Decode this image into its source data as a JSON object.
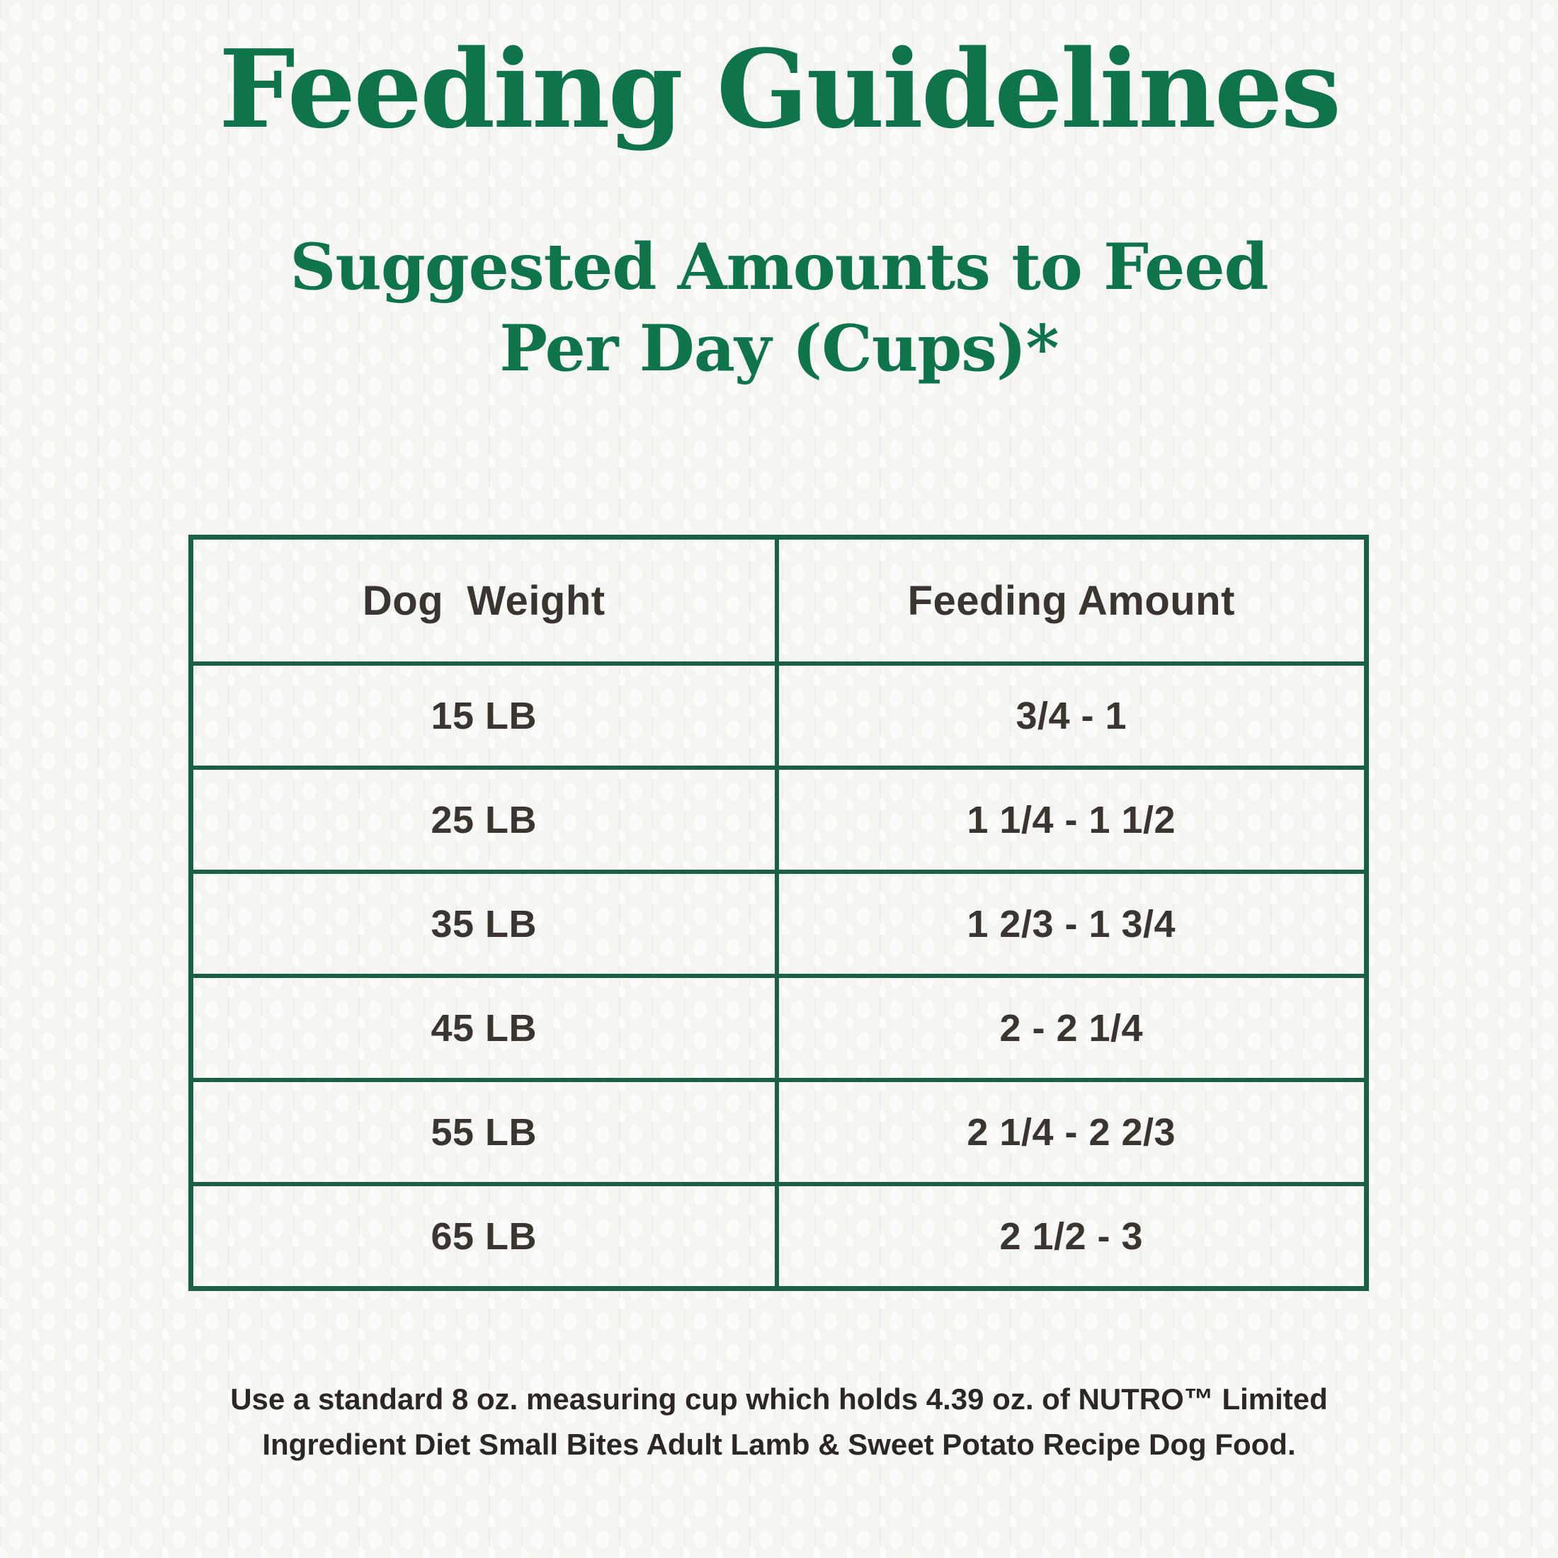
{
  "colors": {
    "brand_green": "#0d7549",
    "table_border_green": "#1b5f44",
    "table_text": "#3a352f",
    "footnote_text": "#2b2724",
    "background": "#f5f5f2"
  },
  "header": {
    "title": "Feeding Guidelines",
    "subtitle_line1": "Suggested Amounts to Feed",
    "subtitle_line2": "Per Day (Cups)*"
  },
  "table": {
    "columns": [
      "Dog  Weight",
      "Feeding Amount"
    ],
    "rows": [
      {
        "weight": "15 LB",
        "amount": "3/4 - 1"
      },
      {
        "weight": "25 LB",
        "amount": "1 1/4 - 1 1/2"
      },
      {
        "weight": "35 LB",
        "amount": "1 2/3 - 1 3/4"
      },
      {
        "weight": "45 LB",
        "amount": "2 - 2 1/4"
      },
      {
        "weight": "55 LB",
        "amount": "2 1/4 - 2 2/3"
      },
      {
        "weight": "65 LB",
        "amount": "2 1/2 - 3"
      }
    ]
  },
  "footnote": {
    "line1": "Use a standard 8 oz. measuring cup which holds 4.39 oz. of NUTRO™ Limited",
    "line2": "Ingredient Diet Small Bites Adult Lamb & Sweet Potato Recipe Dog Food."
  },
  "chart_data": {
    "type": "table",
    "title": "Feeding Guidelines",
    "subtitle": "Suggested Amounts to Feed Per Day (Cups)*",
    "columns": [
      "Dog Weight",
      "Feeding Amount"
    ],
    "rows": [
      [
        "15 LB",
        "3/4 - 1"
      ],
      [
        "25 LB",
        "1 1/4 - 1 1/2"
      ],
      [
        "35 LB",
        "1 2/3 - 1 3/4"
      ],
      [
        "45 LB",
        "2 - 2 1/4"
      ],
      [
        "55 LB",
        "2 1/4 - 2 2/3"
      ],
      [
        "65 LB",
        "2 1/2 - 3"
      ]
    ],
    "numeric": [
      {
        "weight_lb": 15,
        "cups_min": 0.75,
        "cups_max": 1
      },
      {
        "weight_lb": 25,
        "cups_min": 1.25,
        "cups_max": 1.5
      },
      {
        "weight_lb": 35,
        "cups_min": 1.667,
        "cups_max": 1.75
      },
      {
        "weight_lb": 45,
        "cups_min": 2,
        "cups_max": 2.25
      },
      {
        "weight_lb": 55,
        "cups_min": 2.25,
        "cups_max": 2.667
      },
      {
        "weight_lb": 65,
        "cups_min": 2.5,
        "cups_max": 3
      }
    ],
    "footnote": "Use a standard 8 oz. measuring cup which holds 4.39 oz. of NUTRO™ Limited Ingredient Diet Small Bites Adult Lamb & Sweet Potato Recipe Dog Food."
  }
}
